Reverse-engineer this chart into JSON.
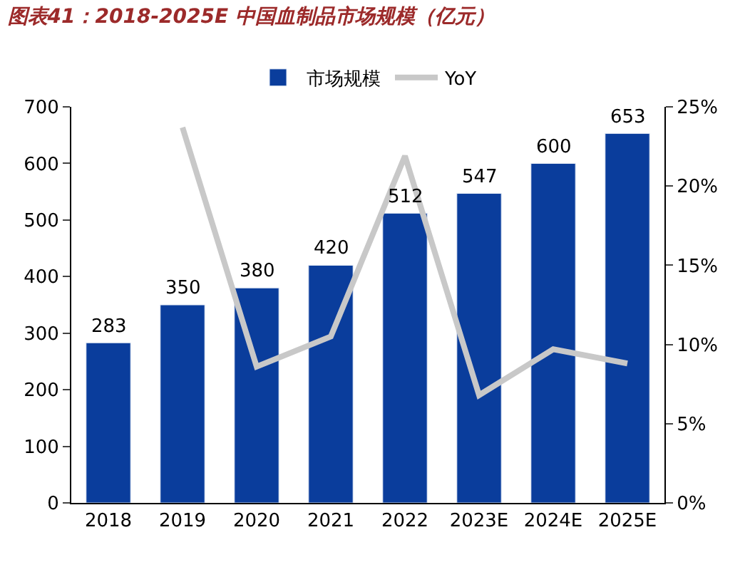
{
  "chart_data": {
    "type": "bar",
    "title": "图表41：2018-2025E 中国血制品市场规模（亿元）",
    "categories": [
      "2018",
      "2019",
      "2020",
      "2021",
      "2022",
      "2023E",
      "2024E",
      "2025E"
    ],
    "series": [
      {
        "name": "市场规模",
        "color": "#0a3d9c",
        "values": [
          283,
          350,
          380,
          420,
          512,
          547,
          600,
          653
        ],
        "value_labels": [
          "283",
          "350",
          "380",
          "420",
          "512",
          "547",
          "600",
          "653"
        ]
      },
      {
        "name": "YoY",
        "type": "line",
        "axis": "y2",
        "color": "#c8c8c8",
        "marker": "none",
        "values": [
          null,
          23.7,
          8.6,
          10.5,
          21.9,
          6.8,
          9.7,
          8.8
        ]
      }
    ],
    "ylim": [
      0,
      700
    ],
    "yticks": [
      0,
      100,
      200,
      300,
      400,
      500,
      600,
      700
    ],
    "y2lim": [
      0,
      25
    ],
    "y2ticks": [
      {
        "value": 0,
        "label": "0%"
      },
      {
        "value": 5,
        "label": "5%"
      },
      {
        "value": 10,
        "label": "10%"
      },
      {
        "value": 15,
        "label": "15%"
      },
      {
        "value": 20,
        "label": "20%"
      },
      {
        "value": 25,
        "label": "25%"
      }
    ],
    "legend": "top"
  }
}
